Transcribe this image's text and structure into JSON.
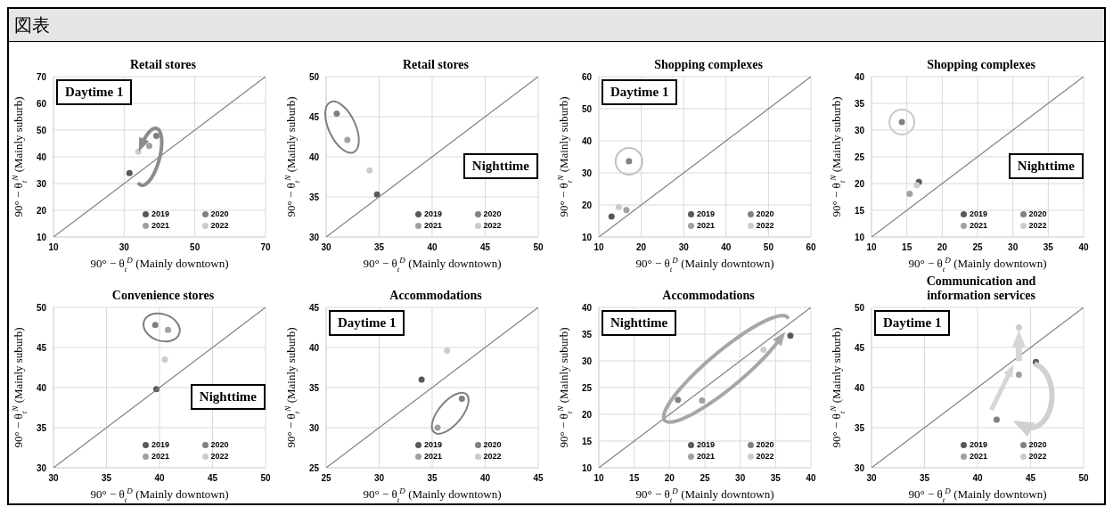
{
  "chart_data": [
    {
      "type": "scatter",
      "title": "Retail stores",
      "xlabel": "90° − θ$_{t}$$^{D}$ (Mainly downtown)",
      "ylabel": "90° − θ$_{t}$$^{N}$ (Mainly suburb)",
      "annotations": [
        "図表",
        "Daytime 1"
      ],
      "xlim": [
        10,
        70
      ],
      "xticks": [
        10,
        30,
        50,
        70
      ],
      "ylim": [
        10,
        70
      ],
      "yticks": [
        10,
        20,
        30,
        40,
        50,
        60,
        70
      ],
      "grid": true,
      "legend": "bottom right",
      "marker": "circle",
      "series": [
        {
          "name": "2019",
          "color": "#595959",
          "x": [
            31.5
          ],
          "values": [
            33.9
          ]
        },
        {
          "name": "2020",
          "color": "#808080",
          "x": [
            39.1
          ],
          "values": [
            47.8
          ]
        },
        {
          "name": "2021",
          "color": "#a0a0a0",
          "x": [
            37.1
          ],
          "values": [
            44.1
          ]
        },
        {
          "name": "2022",
          "color": "#cccccc",
          "x": [
            34
          ],
          "values": [
            41.9
          ]
        },
        {
          "type": "line",
          "color": "#808080",
          "marker": "none",
          "x": [
            10,
            70
          ],
          "values": [
            10,
            70
          ]
        }
      ]
    },
    {
      "type": "scatter",
      "title": "Retail stores",
      "xlabel": "90° − θ$_{t}$$^{D}$ (Mainly downtown)",
      "ylabel": "90° − θ$_{t}$$^{N}$ (Mainly suburb)",
      "annotations": [
        "Nighttime"
      ],
      "xlim": [
        30,
        50
      ],
      "xticks": [
        30,
        35,
        40,
        45,
        50
      ],
      "ylim": [
        30,
        50
      ],
      "yticks": [
        30,
        35,
        40,
        45,
        50
      ],
      "grid": true,
      "legend": "bottom right",
      "marker": "circle",
      "series": [
        {
          "name": "2019",
          "color": "#595959",
          "x": [
            34.8
          ],
          "values": [
            35.3
          ]
        },
        {
          "name": "2020",
          "color": "#808080",
          "x": [
            31
          ],
          "values": [
            45.4
          ]
        },
        {
          "name": "2021",
          "color": "#a0a0a0",
          "x": [
            32
          ],
          "values": [
            42.1
          ]
        },
        {
          "name": "2022",
          "color": "#cccccc",
          "x": [
            34.1
          ],
          "values": [
            38.3
          ]
        },
        {
          "type": "line",
          "color": "#808080",
          "marker": "none",
          "x": [
            30,
            50
          ],
          "values": [
            30,
            50
          ]
        }
      ]
    },
    {
      "type": "scatter",
      "title": "Shopping complexes",
      "xlabel": "90° − θ$_{t}$$^{D}$ (Mainly downtown)",
      "ylabel": "90° − θ$_{t}$$^{N}$ (Mainly suburb)",
      "annotations": [
        "Daytime 1"
      ],
      "xlim": [
        10,
        60
      ],
      "xticks": [
        10,
        20,
        30,
        40,
        50,
        60
      ],
      "ylim": [
        10,
        60
      ],
      "yticks": [
        10,
        20,
        30,
        40,
        50,
        60
      ],
      "grid": true,
      "legend": "bottom right",
      "marker": "circle",
      "series": [
        {
          "name": "2019",
          "color": "#595959",
          "x": [
            13
          ],
          "values": [
            16.4
          ]
        },
        {
          "name": "2020",
          "color": "#808080",
          "x": [
            17.1
          ],
          "values": [
            33.6
          ]
        },
        {
          "name": "2021",
          "color": "#a0a0a0",
          "x": [
            16.5
          ],
          "values": [
            18.4
          ]
        },
        {
          "name": "2022",
          "color": "#cccccc",
          "x": [
            14.7
          ],
          "values": [
            19.3
          ]
        },
        {
          "type": "line",
          "color": "#808080",
          "marker": "none",
          "x": [
            10,
            60
          ],
          "values": [
            10,
            60
          ]
        }
      ]
    },
    {
      "type": "scatter",
      "title": "Shopping complexes",
      "xlabel": "90° − θ$_{t}$$^{D}$ (Mainly downtown)",
      "ylabel": "90° − θ$_{t}$$^{N}$ (Mainly suburb)",
      "annotations": [
        "Nighttime"
      ],
      "xlim": [
        10,
        40
      ],
      "xticks": [
        10,
        15,
        20,
        25,
        30,
        35,
        40
      ],
      "ylim": [
        10,
        40
      ],
      "yticks": [
        10,
        15,
        20,
        25,
        30,
        35,
        40
      ],
      "grid": true,
      "legend": "bottom right",
      "marker": "circle",
      "series": [
        {
          "name": "2019",
          "color": "#595959",
          "x": [
            16.7
          ],
          "values": [
            20.3
          ]
        },
        {
          "name": "2020",
          "color": "#808080",
          "x": [
            14.3
          ],
          "values": [
            31.5
          ]
        },
        {
          "name": "2021",
          "color": "#a0a0a0",
          "x": [
            15.4
          ],
          "values": [
            18.1
          ]
        },
        {
          "name": "2022",
          "color": "#cccccc",
          "x": [
            16.4
          ],
          "values": [
            19.7
          ]
        },
        {
          "type": "line",
          "color": "#808080",
          "marker": "none",
          "x": [
            10,
            40
          ],
          "values": [
            10,
            40
          ]
        }
      ]
    },
    {
      "type": "scatter",
      "title": "Convenience stores",
      "xlabel": "90° − θ$_{t}$$^{D}$ (Mainly downtown)",
      "ylabel": "90° − θ$_{t}$$^{N}$ (Mainly suburb)",
      "annotations": [
        "Nighttime"
      ],
      "xlim": [
        30,
        50
      ],
      "xticks": [
        30,
        35,
        40,
        45,
        50
      ],
      "ylim": [
        30,
        50
      ],
      "yticks": [
        30,
        35,
        40,
        45,
        50
      ],
      "grid": true,
      "legend": "bottom right",
      "marker": "circle",
      "series": [
        {
          "name": "2019",
          "color": "#595959",
          "x": [
            39.7
          ],
          "values": [
            39.8
          ]
        },
        {
          "name": "2020",
          "color": "#808080",
          "x": [
            39.6
          ],
          "values": [
            47.8
          ]
        },
        {
          "name": "2021",
          "color": "#a0a0a0",
          "x": [
            40.8
          ],
          "values": [
            47.2
          ]
        },
        {
          "name": "2022",
          "color": "#cccccc",
          "x": [
            40.5
          ],
          "values": [
            43.5
          ]
        },
        {
          "type": "line",
          "color": "#808080",
          "marker": "none",
          "x": [
            30,
            50
          ],
          "values": [
            30,
            50
          ]
        }
      ]
    },
    {
      "type": "scatter",
      "title": "Accommodations",
      "xlabel": "90° − θ$_{t}$$^{D}$ (Mainly downtown)",
      "ylabel": "90° − θ$_{t}$$^{N}$ (Mainly suburb)",
      "annotations": [
        "Daytime 1"
      ],
      "xlim": [
        25,
        45
      ],
      "xticks": [
        25,
        30,
        35,
        40,
        45
      ],
      "ylim": [
        25,
        45
      ],
      "yticks": [
        25,
        30,
        35,
        40,
        45
      ],
      "grid": true,
      "legend": "bottom right",
      "marker": "circle",
      "series": [
        {
          "name": "2019",
          "color": "#595959",
          "x": [
            34
          ],
          "values": [
            36
          ]
        },
        {
          "name": "2020",
          "color": "#808080",
          "x": [
            37.8
          ],
          "values": [
            33.6
          ]
        },
        {
          "name": "2021",
          "color": "#a0a0a0",
          "x": [
            35.5
          ],
          "values": [
            30
          ]
        },
        {
          "name": "2022",
          "color": "#cccccc",
          "x": [
            36.4
          ],
          "values": [
            39.6
          ]
        },
        {
          "type": "line",
          "color": "#808080",
          "marker": "none",
          "x": [
            25,
            45
          ],
          "values": [
            25,
            45
          ]
        }
      ]
    },
    {
      "type": "scatter",
      "title": "Accommodations",
      "xlabel": "90° − θ$_{t}$$^{D}$ (Mainly downtown)",
      "ylabel": "90° − θ$_{t}$$^{N}$ (Mainly suburb)",
      "annotations": [
        "Nighttime"
      ],
      "xlim": [
        10,
        40
      ],
      "xticks": [
        10,
        15,
        20,
        25,
        30,
        35,
        40
      ],
      "ylim": [
        10,
        40
      ],
      "yticks": [
        10,
        15,
        20,
        25,
        30,
        35,
        40
      ],
      "grid": true,
      "legend": "bottom right",
      "marker": "circle",
      "series": [
        {
          "name": "2019",
          "color": "#595959",
          "x": [
            37.1
          ],
          "values": [
            34.7
          ]
        },
        {
          "name": "2020",
          "color": "#808080",
          "x": [
            21.2
          ],
          "values": [
            22.7
          ]
        },
        {
          "name": "2021",
          "color": "#a0a0a0",
          "x": [
            24.6
          ],
          "values": [
            22.6
          ]
        },
        {
          "name": "2022",
          "color": "#cccccc",
          "x": [
            33.3
          ],
          "values": [
            32.1
          ]
        },
        {
          "type": "line",
          "color": "#808080",
          "marker": "none",
          "x": [
            10,
            40
          ],
          "values": [
            10,
            40
          ]
        }
      ]
    },
    {
      "type": "scatter",
      "title": "Communication and information services",
      "xlabel": "90° − θ$_{t}$$^{D}$ (Mainly downtown)",
      "ylabel": "90° − θ$_{t}$$^{N}$ (Mainly suburb)",
      "annotations": [
        "Daytime 1"
      ],
      "xlim": [
        30,
        50
      ],
      "xticks": [
        30,
        35,
        40,
        45,
        50
      ],
      "ylim": [
        30,
        50
      ],
      "yticks": [
        30,
        35,
        40,
        45,
        50
      ],
      "grid": true,
      "legend": "bottom right",
      "marker": "circle",
      "series": [
        {
          "name": "2019",
          "color": "#595959",
          "x": [
            45.5
          ],
          "values": [
            43.2
          ]
        },
        {
          "name": "2020",
          "color": "#808080",
          "x": [
            41.8
          ],
          "values": [
            36
          ]
        },
        {
          "name": "2021",
          "color": "#a0a0a0",
          "x": [
            43.9
          ],
          "values": [
            41.6
          ]
        },
        {
          "name": "2022",
          "color": "#cccccc",
          "x": [
            43.9
          ],
          "values": [
            47.5
          ]
        },
        {
          "type": "line",
          "color": "#808080",
          "marker": "none",
          "x": [
            30,
            50
          ],
          "values": [
            30,
            50
          ]
        }
      ]
    }
  ]
}
